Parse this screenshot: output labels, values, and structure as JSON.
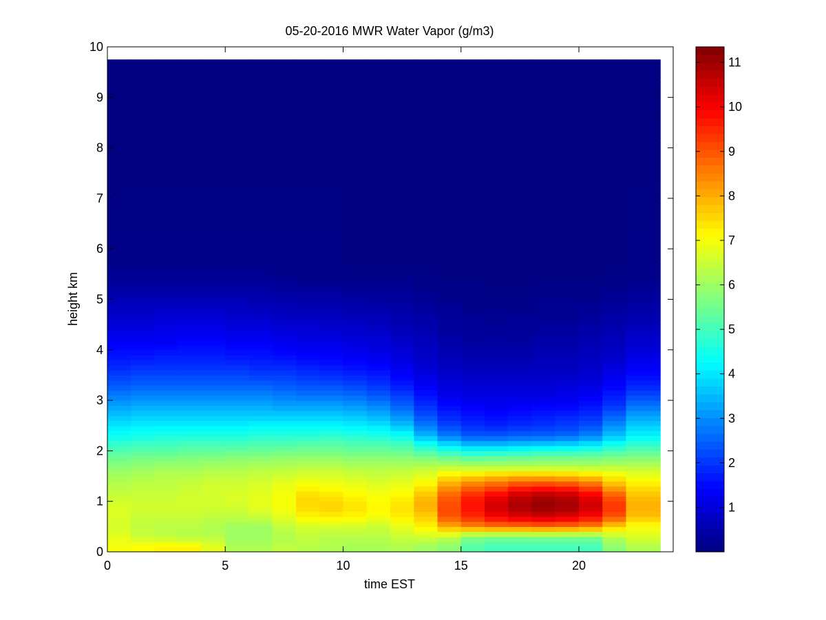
{
  "chart_data": {
    "type": "heatmap",
    "title": "05-20-2016 MWR Water Vapor (g/m3)",
    "xlabel": "time EST",
    "ylabel": "height km",
    "xlim": [
      0,
      24
    ],
    "ylim": [
      0,
      10
    ],
    "x_ticks": [
      0,
      5,
      10,
      15,
      20
    ],
    "y_ticks": [
      0,
      1,
      2,
      3,
      4,
      5,
      6,
      7,
      8,
      9,
      10
    ],
    "colorbar": {
      "min": 0,
      "max": 11.35,
      "ticks": [
        1,
        2,
        3,
        4,
        5,
        6,
        7,
        8,
        9,
        10,
        11
      ],
      "colormap": "jet"
    },
    "x_centers": [
      0.5,
      1.5,
      2.5,
      3.5,
      4.5,
      5.5,
      6.5,
      7.5,
      8.5,
      9.5,
      10.5,
      11.5,
      12.5,
      13.5,
      14.5,
      15.5,
      16.5,
      17.5,
      18.5,
      19.5,
      20.5,
      21.5,
      22.5
    ],
    "data_top_km": 9.75,
    "layers": [
      {
        "height_km": 0.1,
        "values": [
          7.0,
          7.1,
          7.2,
          7.2,
          6.8,
          6.2,
          6.2,
          6.4,
          6.3,
          6.2,
          6.1,
          6.1,
          6.2,
          6.0,
          5.8,
          5.2,
          5.0,
          5.0,
          5.0,
          5.0,
          5.0,
          5.8,
          6.2
        ]
      },
      {
        "height_km": 0.3,
        "values": [
          6.8,
          6.5,
          6.4,
          6.3,
          6.3,
          6.0,
          6.0,
          6.2,
          6.4,
          6.3,
          6.3,
          6.3,
          6.5,
          6.6,
          6.4,
          5.7,
          5.6,
          5.6,
          5.6,
          5.6,
          5.6,
          6.3,
          6.7
        ]
      },
      {
        "height_km": 0.5,
        "values": [
          6.6,
          6.4,
          6.3,
          6.3,
          6.2,
          6.0,
          6.0,
          6.4,
          6.6,
          6.6,
          6.6,
          6.5,
          6.8,
          7.2,
          8.0,
          8.4,
          8.6,
          8.6,
          8.7,
          8.6,
          8.4,
          7.6,
          7.0
        ]
      },
      {
        "height_km": 0.7,
        "values": [
          6.7,
          6.5,
          6.5,
          6.5,
          6.4,
          6.4,
          6.5,
          6.8,
          7.2,
          7.3,
          7.2,
          7.0,
          7.3,
          7.6,
          9.0,
          9.5,
          10.0,
          10.3,
          10.5,
          10.3,
          9.9,
          9.0,
          7.8
        ]
      },
      {
        "height_km": 0.9,
        "values": [
          6.7,
          6.6,
          6.6,
          6.6,
          6.6,
          6.6,
          6.8,
          7.0,
          7.5,
          7.6,
          7.4,
          7.2,
          7.4,
          8.0,
          9.1,
          9.8,
          10.5,
          10.9,
          11.1,
          11.0,
          10.5,
          9.4,
          8.0
        ]
      },
      {
        "height_km": 1.1,
        "values": [
          6.5,
          6.5,
          6.5,
          6.6,
          6.6,
          6.7,
          6.8,
          7.0,
          7.5,
          7.4,
          7.2,
          7.0,
          7.2,
          7.8,
          8.9,
          9.6,
          10.1,
          10.6,
          10.9,
          10.7,
          10.2,
          9.0,
          7.8
        ]
      },
      {
        "height_km": 1.3,
        "values": [
          6.3,
          6.4,
          6.4,
          6.5,
          6.6,
          6.6,
          6.7,
          6.9,
          7.1,
          7.0,
          6.9,
          6.8,
          6.9,
          7.3,
          8.2,
          8.7,
          9.0,
          9.4,
          9.5,
          9.4,
          9.0,
          8.0,
          7.4
        ]
      },
      {
        "height_km": 1.5,
        "values": [
          6.1,
          6.2,
          6.3,
          6.3,
          6.4,
          6.4,
          6.5,
          6.6,
          6.7,
          6.7,
          6.6,
          6.5,
          6.6,
          6.8,
          7.4,
          7.6,
          7.8,
          7.9,
          7.9,
          7.8,
          7.6,
          7.2,
          6.9
        ]
      },
      {
        "height_km": 1.7,
        "values": [
          5.8,
          5.9,
          6.0,
          6.0,
          6.1,
          6.1,
          6.2,
          6.2,
          6.3,
          6.3,
          6.2,
          6.2,
          6.2,
          6.3,
          6.3,
          6.2,
          6.2,
          6.2,
          6.2,
          6.2,
          6.2,
          6.3,
          6.3
        ]
      },
      {
        "height_km": 1.9,
        "values": [
          5.4,
          5.5,
          5.5,
          5.6,
          5.6,
          5.7,
          5.7,
          5.8,
          5.8,
          5.8,
          5.7,
          5.7,
          5.7,
          5.5,
          5.3,
          5.1,
          5.2,
          5.3,
          5.4,
          5.4,
          5.4,
          5.5,
          5.6
        ]
      },
      {
        "height_km": 2.1,
        "values": [
          4.9,
          5.0,
          5.0,
          5.1,
          5.1,
          5.1,
          5.2,
          5.2,
          5.3,
          5.3,
          5.2,
          5.2,
          5.1,
          4.6,
          4.1,
          3.7,
          3.7,
          3.8,
          3.9,
          4.0,
          4.2,
          4.6,
          4.9
        ]
      },
      {
        "height_km": 2.3,
        "values": [
          4.4,
          4.5,
          4.6,
          4.6,
          4.6,
          4.6,
          4.7,
          4.7,
          4.7,
          4.8,
          4.7,
          4.6,
          4.4,
          3.5,
          2.8,
          2.4,
          2.4,
          2.5,
          2.5,
          2.6,
          2.9,
          3.6,
          4.2
        ]
      },
      {
        "height_km": 2.5,
        "values": [
          4.0,
          4.1,
          4.1,
          4.1,
          4.1,
          4.1,
          4.2,
          4.2,
          4.2,
          4.2,
          4.1,
          4.0,
          3.6,
          2.8,
          2.2,
          1.9,
          1.8,
          1.9,
          2.0,
          2.1,
          2.3,
          3.0,
          3.7
        ]
      },
      {
        "height_km": 2.7,
        "values": [
          3.6,
          3.7,
          3.7,
          3.7,
          3.7,
          3.7,
          3.7,
          3.7,
          3.7,
          3.7,
          3.6,
          3.4,
          3.0,
          2.3,
          1.8,
          1.6,
          1.5,
          1.6,
          1.7,
          1.8,
          1.9,
          2.5,
          3.2
        ]
      },
      {
        "height_km": 2.9,
        "values": [
          3.2,
          3.3,
          3.3,
          3.3,
          3.3,
          3.3,
          3.3,
          3.2,
          3.2,
          3.2,
          3.1,
          2.9,
          2.5,
          1.9,
          1.5,
          1.3,
          1.3,
          1.3,
          1.4,
          1.4,
          1.6,
          2.0,
          2.7
        ]
      },
      {
        "height_km": 3.1,
        "values": [
          2.8,
          2.9,
          2.9,
          2.9,
          2.9,
          2.9,
          2.9,
          2.8,
          2.7,
          2.7,
          2.6,
          2.4,
          2.1,
          1.6,
          1.2,
          1.1,
          1.1,
          1.1,
          1.1,
          1.2,
          1.3,
          1.7,
          2.2
        ]
      },
      {
        "height_km": 3.3,
        "values": [
          2.4,
          2.5,
          2.5,
          2.5,
          2.5,
          2.5,
          2.5,
          2.4,
          2.3,
          2.3,
          2.2,
          2.0,
          1.7,
          1.3,
          1.0,
          0.9,
          0.9,
          0.9,
          0.9,
          1.0,
          1.1,
          1.4,
          1.8
        ]
      },
      {
        "height_km": 3.5,
        "values": [
          2.1,
          2.2,
          2.2,
          2.2,
          2.2,
          2.2,
          2.1,
          2.1,
          2.0,
          1.9,
          1.8,
          1.7,
          1.4,
          1.1,
          0.9,
          0.8,
          0.8,
          0.8,
          0.8,
          0.8,
          0.9,
          1.2,
          1.5
        ]
      },
      {
        "height_km": 3.7,
        "values": [
          1.8,
          1.9,
          1.9,
          1.9,
          1.9,
          1.9,
          1.8,
          1.8,
          1.7,
          1.6,
          1.5,
          1.4,
          1.2,
          0.9,
          0.7,
          0.6,
          0.6,
          0.6,
          0.7,
          0.7,
          0.8,
          1.0,
          1.3
        ]
      },
      {
        "height_km": 3.9,
        "values": [
          1.6,
          1.6,
          1.7,
          1.7,
          1.7,
          1.6,
          1.6,
          1.5,
          1.4,
          1.4,
          1.3,
          1.2,
          1.0,
          0.8,
          0.6,
          0.5,
          0.5,
          0.5,
          0.6,
          0.6,
          0.7,
          0.8,
          1.1
        ]
      },
      {
        "height_km": 4.1,
        "values": [
          1.4,
          1.4,
          1.4,
          1.5,
          1.5,
          1.4,
          1.4,
          1.3,
          1.2,
          1.2,
          1.1,
          1.0,
          0.9,
          0.7,
          0.5,
          0.4,
          0.4,
          0.4,
          0.5,
          0.5,
          0.6,
          0.7,
          0.9
        ]
      },
      {
        "height_km": 4.3,
        "values": [
          1.2,
          1.2,
          1.2,
          1.3,
          1.3,
          1.2,
          1.2,
          1.1,
          1.0,
          1.0,
          0.9,
          0.9,
          0.7,
          0.6,
          0.4,
          0.3,
          0.3,
          0.3,
          0.4,
          0.4,
          0.5,
          0.6,
          0.8
        ]
      },
      {
        "height_km": 4.5,
        "values": [
          1.0,
          1.0,
          1.1,
          1.1,
          1.1,
          1.0,
          1.0,
          0.9,
          0.9,
          0.8,
          0.8,
          0.7,
          0.6,
          0.5,
          0.3,
          0.3,
          0.2,
          0.3,
          0.3,
          0.3,
          0.4,
          0.5,
          0.6
        ]
      },
      {
        "height_km": 4.7,
        "values": [
          0.8,
          0.8,
          0.9,
          0.9,
          0.9,
          0.8,
          0.8,
          0.7,
          0.7,
          0.7,
          0.6,
          0.6,
          0.5,
          0.4,
          0.3,
          0.2,
          0.2,
          0.2,
          0.2,
          0.2,
          0.3,
          0.4,
          0.5
        ]
      },
      {
        "height_km": 4.9,
        "values": [
          0.7,
          0.7,
          0.7,
          0.7,
          0.7,
          0.7,
          0.6,
          0.6,
          0.5,
          0.5,
          0.5,
          0.4,
          0.4,
          0.3,
          0.2,
          0.1,
          0.1,
          0.1,
          0.2,
          0.2,
          0.2,
          0.3,
          0.4
        ]
      },
      {
        "height_km": 5.1,
        "values": [
          0.5,
          0.5,
          0.5,
          0.5,
          0.5,
          0.5,
          0.5,
          0.4,
          0.4,
          0.4,
          0.3,
          0.3,
          0.3,
          0.2,
          0.1,
          0.1,
          0.1,
          0.1,
          0.1,
          0.1,
          0.1,
          0.2,
          0.3
        ]
      },
      {
        "height_km": 5.3,
        "values": [
          0.3,
          0.3,
          0.3,
          0.3,
          0.3,
          0.3,
          0.3,
          0.3,
          0.2,
          0.2,
          0.2,
          0.2,
          0.2,
          0.1,
          0.1,
          0.1,
          0.0,
          0.0,
          0.1,
          0.1,
          0.1,
          0.1,
          0.2
        ]
      },
      {
        "height_km": 5.5,
        "values": [
          0.2,
          0.2,
          0.2,
          0.2,
          0.2,
          0.2,
          0.2,
          0.1,
          0.1,
          0.1,
          0.1,
          0.1,
          0.1,
          0.1,
          0.0,
          0.0,
          0.0,
          0.0,
          0.0,
          0.0,
          0.0,
          0.1,
          0.1
        ]
      },
      {
        "height_km": 5.8,
        "values": [
          0.1,
          0.1,
          0.1,
          0.1,
          0.1,
          0.1,
          0.1,
          0.1,
          0.1,
          0.1,
          0.0,
          0.0,
          0.0,
          0.0,
          0.0,
          0.0,
          0.0,
          0.0,
          0.0,
          0.0,
          0.0,
          0.0,
          0.1
        ]
      },
      {
        "height_km": 7.8,
        "values": [
          0.0,
          0.0,
          0.0,
          0.0,
          0.0,
          0.0,
          0.0,
          0.0,
          0.0,
          0.0,
          0.0,
          0.0,
          0.0,
          0.0,
          0.0,
          0.0,
          0.0,
          0.0,
          0.0,
          0.0,
          0.0,
          0.0,
          0.0
        ]
      }
    ]
  }
}
